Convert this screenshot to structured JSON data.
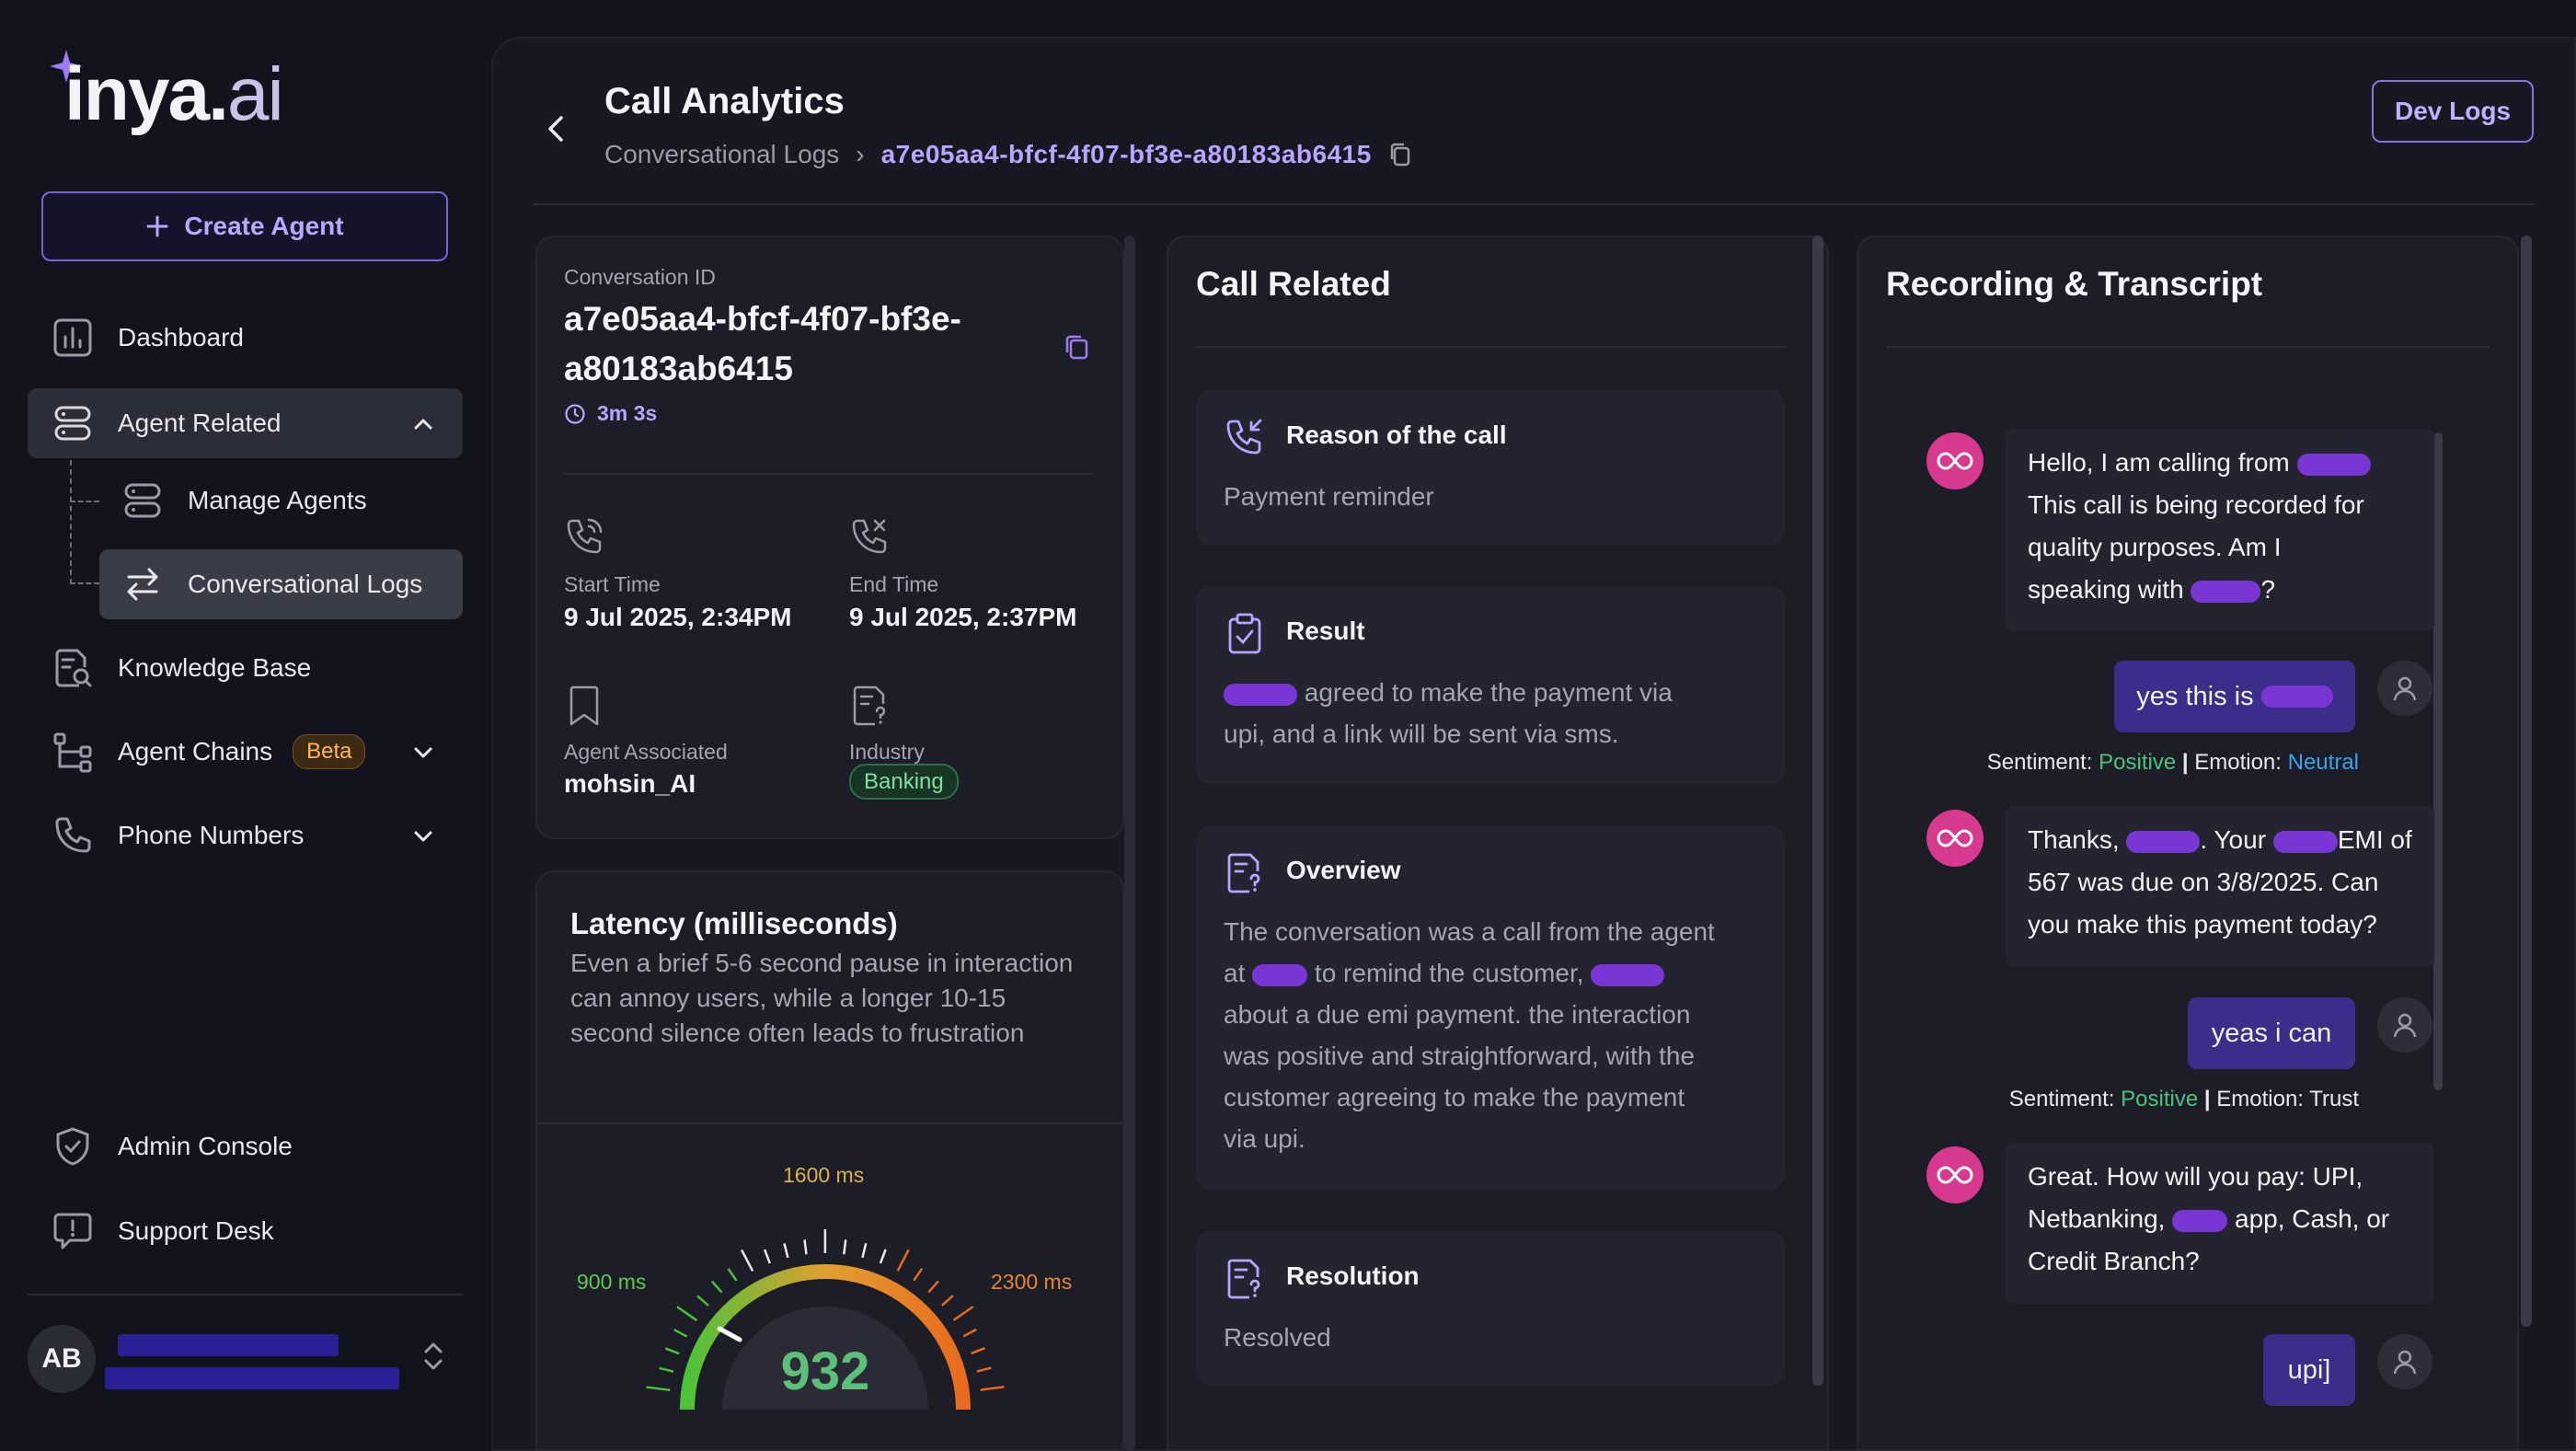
{
  "brand": {
    "logo_main": "inya.",
    "logo_accent": "ai"
  },
  "sidebar": {
    "create_agent": "Create Agent",
    "dashboard": "Dashboard",
    "agent_related": "Agent Related",
    "manage_agents": "Manage Agents",
    "conversational_logs": "Conversational Logs",
    "knowledge_base": "Knowledge Base",
    "agent_chains": "Agent Chains",
    "beta": "Beta",
    "phone_numbers": "Phone Numbers",
    "admin_console": "Admin Console",
    "support_desk": "Support Desk",
    "user_initials": "AB"
  },
  "header": {
    "title": "Call Analytics",
    "crumb_parent": "Conversational Logs",
    "crumb_sep": "›",
    "crumb_id": "a7e05aa4-bfcf-4f07-bf3e-a80183ab6415",
    "dev_logs": "Dev Logs"
  },
  "conversation": {
    "id_label": "Conversation ID",
    "id_line1": "a7e05aa4-bfcf-4f07-bf3e-",
    "id_line2": "a80183ab6415",
    "duration": "3m 3s",
    "start_label": "Start Time",
    "start_value": "9 Jul 2025, 2:34PM",
    "end_label": "End Time",
    "end_value": "9 Jul 2025, 2:37PM",
    "agent_label": "Agent Associated",
    "agent_value": "mohsin_AI",
    "industry_label": "Industry",
    "industry_value": "Banking"
  },
  "latency": {
    "title": "Latency (milliseconds)",
    "description": "Even a brief 5-6 second pause in interaction can annoy users, while a longer 10-15 second silence often leads to frustration",
    "value": "932",
    "label_left": "900 ms",
    "label_top": "1600 ms",
    "label_right": "2300 ms",
    "colors": {
      "low": "#4cc23a",
      "mid": "#e0a030",
      "high": "#e86a1e"
    }
  },
  "call_related": {
    "title": "Call Related",
    "reason_title": "Reason of the call",
    "reason_text": "Payment reminder",
    "result_title": "Result",
    "result_text_1": "agreed to make the payment via",
    "result_text_2": "upi, and a link will be sent via sms.",
    "overview_title": "Overview",
    "overview_l1": "The conversation was a call from the agent",
    "overview_l2a": "at",
    "overview_l2b": "to remind the customer,",
    "overview_l3": "about a due emi payment. the interaction",
    "overview_l4": "was positive and straightforward, with the",
    "overview_l5": "customer agreeing to make the payment",
    "overview_l6": "via upi.",
    "resolution_title": "Resolution",
    "resolution_text": "Resolved"
  },
  "transcript": {
    "title": "Recording & Transcript",
    "m1_l1": "Hello, I am calling from",
    "m1_l2": "This call is being recorded for",
    "m1_l3": "quality purposes. Am I",
    "m1_l4a": "speaking with",
    "m1_l4b": "?",
    "u1": "yes this is",
    "s1_label": "Sentiment:",
    "s1_sent": "Positive",
    "s1_sep": "|",
    "s1_emo_label": "Emotion:",
    "s1_emo": "Neutral",
    "m2_l1a": "Thanks,",
    "m2_l1b": ". Your",
    "m2_l1c": "EMI of",
    "m2_l2": "567 was due on 3/8/2025. Can",
    "m2_l3": "you make this payment today?",
    "u2": "yeas i can",
    "s2_label": "Sentiment:",
    "s2_sent": "Positive",
    "s2_sep": "|",
    "s2_emo_label": "Emotion:",
    "s2_emo": "Trust",
    "m3_l1": "Great. How will you pay: UPI,",
    "m3_l2a": "Netbanking,",
    "m3_l2b": "app, Cash, or",
    "m3_l3": "Credit Branch?",
    "u3": "upi]"
  }
}
